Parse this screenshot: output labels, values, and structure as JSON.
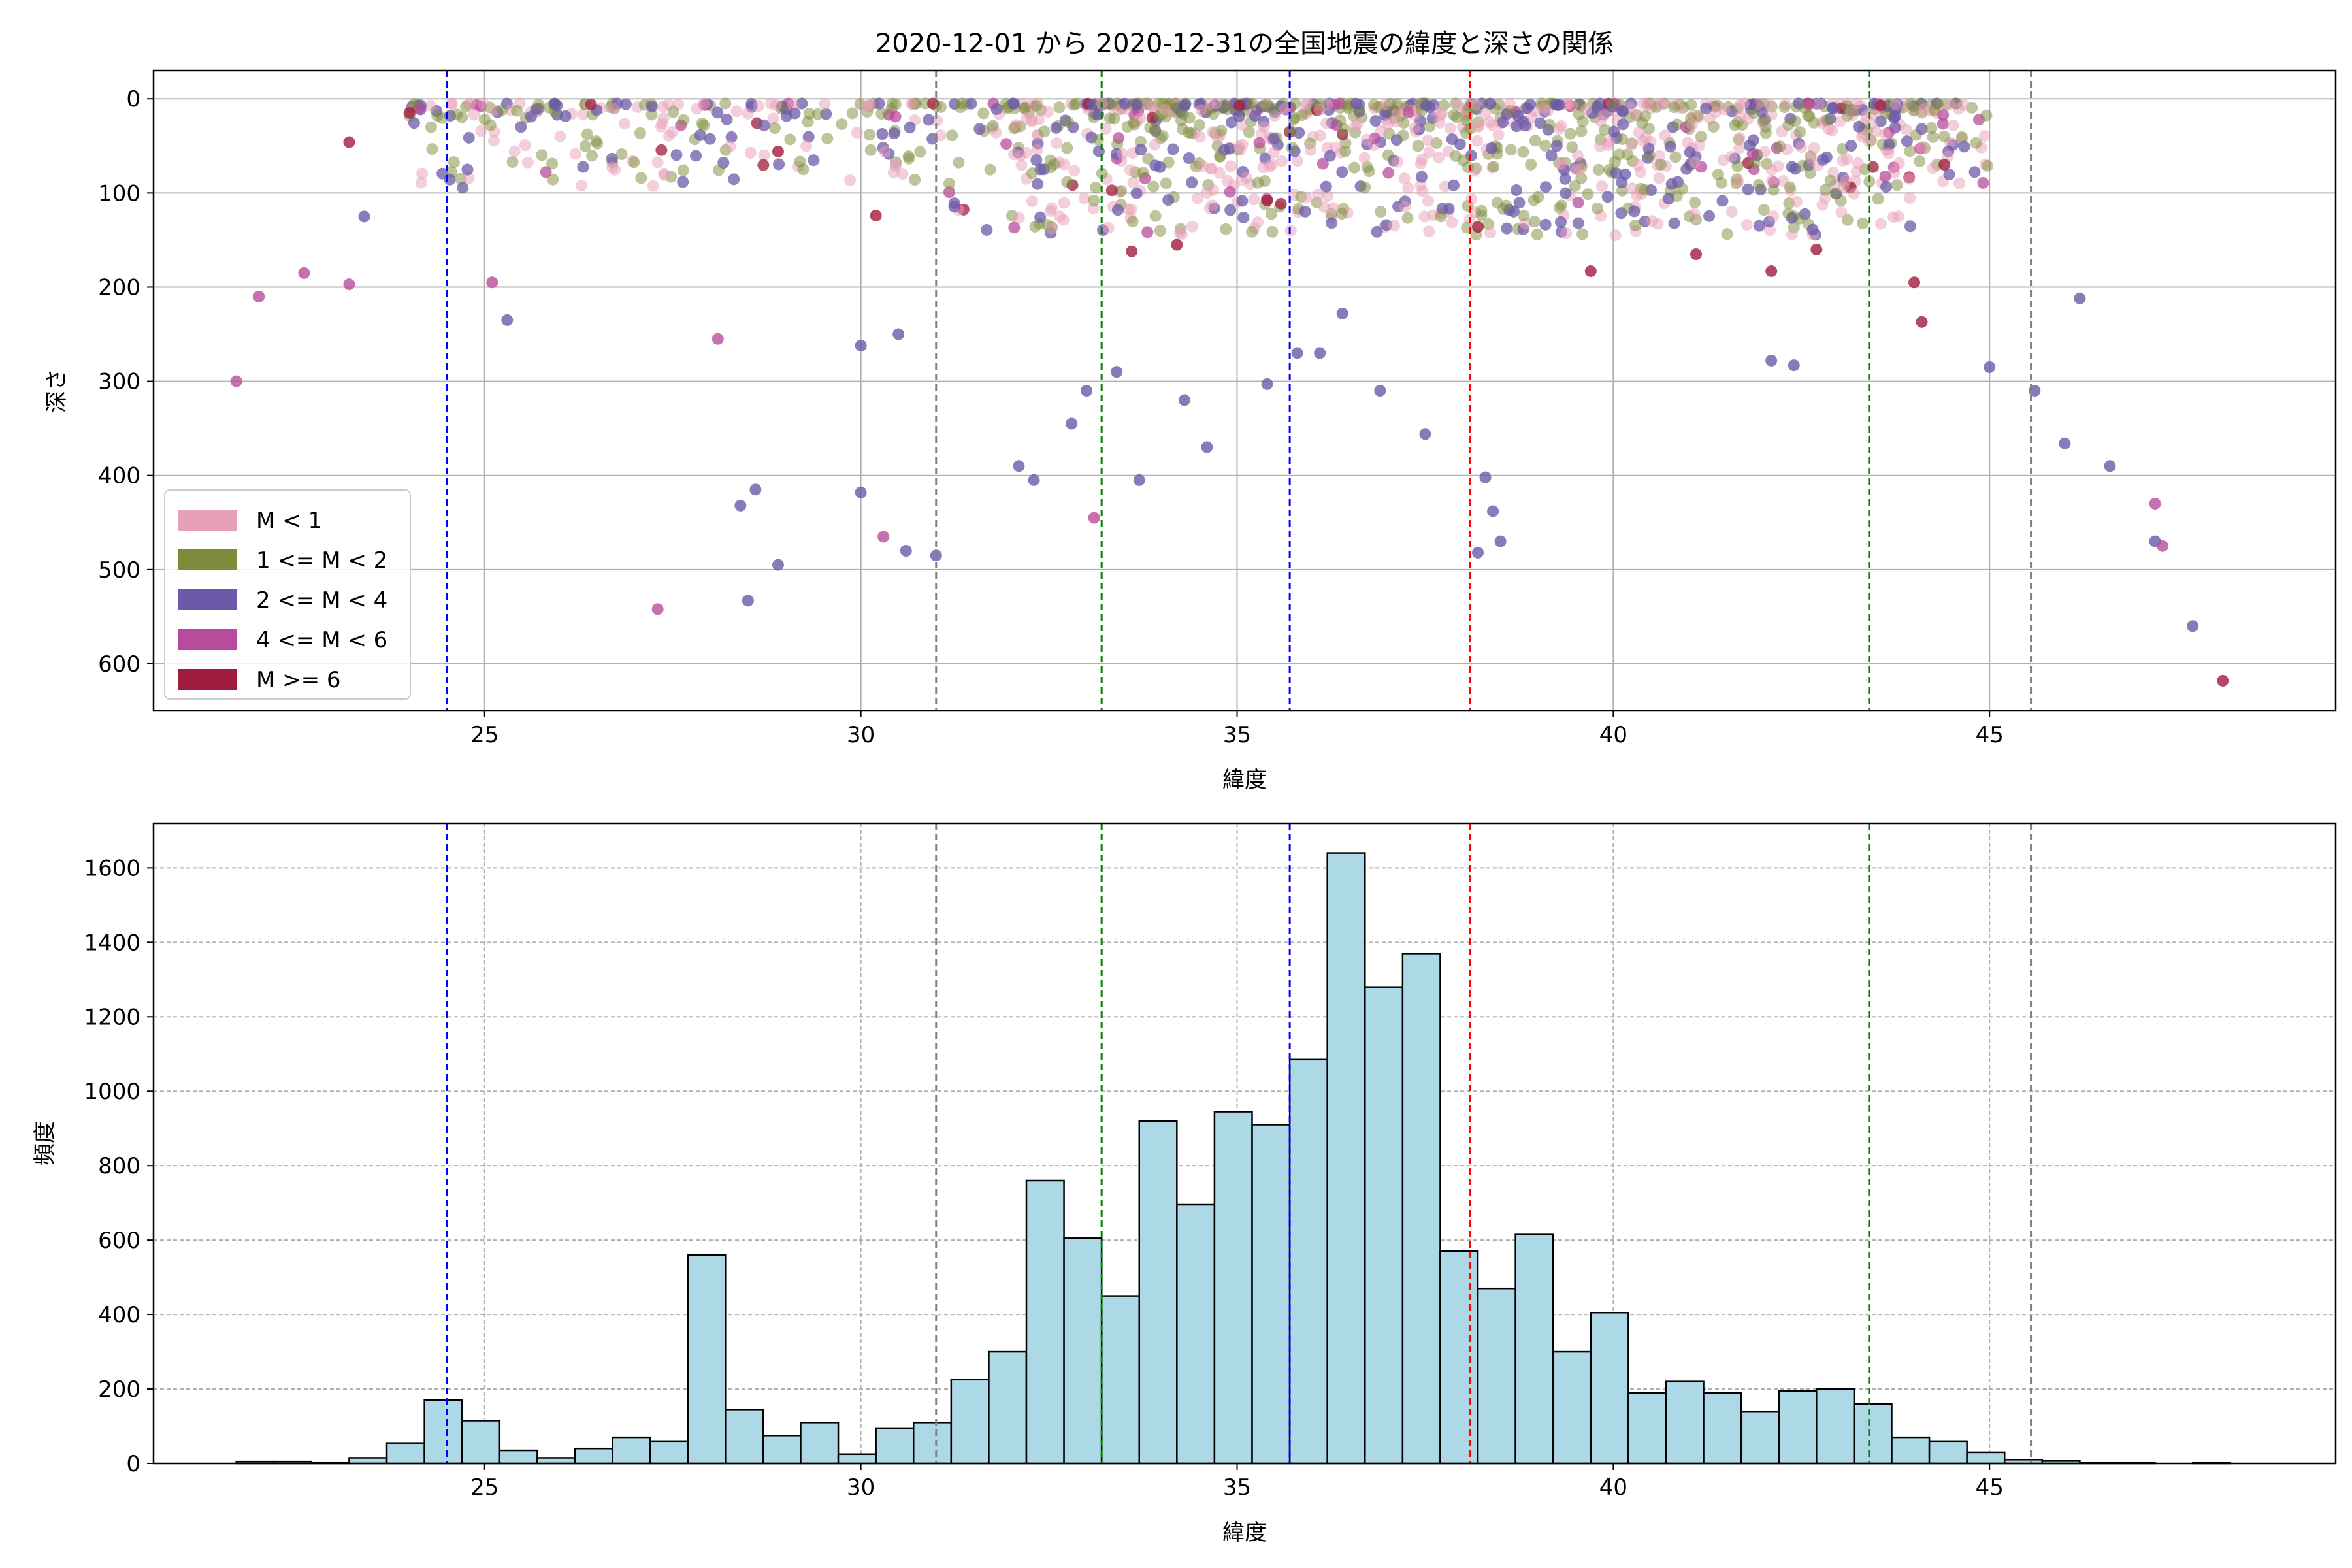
{
  "figure": {
    "title": "2020-12-01 から 2020-12-31の全国地震の緯度と深さの関係"
  },
  "chart_data": [
    {
      "type": "scatter",
      "xlabel": "緯度",
      "ylabel": "深さ",
      "xlim": [
        20.6,
        49.6
      ],
      "ylim": [
        650,
        -30
      ],
      "y_inverted": true,
      "xticks": [
        25,
        30,
        35,
        40,
        45
      ],
      "yticks": [
        0,
        100,
        200,
        300,
        400,
        500,
        600
      ],
      "grid": true,
      "legend_position": "lower-left",
      "series": [
        {
          "name": "M < 1",
          "color": "#e8a0b8"
        },
        {
          "name": "1 <= M < 2",
          "color": "#7d8c3c"
        },
        {
          "name": "2 <= M < 4",
          "color": "#6c5aa8"
        },
        {
          "name": "4 <= M < 6",
          "color": "#b84c9c"
        },
        {
          "name": "M >= 6",
          "color": "#a01c3c"
        }
      ],
      "sample_points": [
        {
          "x": 21.7,
          "y": 300,
          "series": 3
        },
        {
          "x": 22.0,
          "y": 210,
          "series": 3
        },
        {
          "x": 22.6,
          "y": 185,
          "series": 3
        },
        {
          "x": 23.2,
          "y": 197,
          "series": 3
        },
        {
          "x": 23.4,
          "y": 125,
          "series": 2
        },
        {
          "x": 25.3,
          "y": 235,
          "series": 2
        },
        {
          "x": 25.1,
          "y": 195,
          "series": 3
        },
        {
          "x": 27.3,
          "y": 542,
          "series": 3
        },
        {
          "x": 28.1,
          "y": 255,
          "series": 3
        },
        {
          "x": 28.5,
          "y": 533,
          "series": 2
        },
        {
          "x": 28.6,
          "y": 415,
          "series": 2
        },
        {
          "x": 28.4,
          "y": 432,
          "series": 2
        },
        {
          "x": 28.9,
          "y": 495,
          "series": 2
        },
        {
          "x": 30.0,
          "y": 418,
          "series": 2
        },
        {
          "x": 30.3,
          "y": 465,
          "series": 3
        },
        {
          "x": 30.6,
          "y": 480,
          "series": 2
        },
        {
          "x": 31.0,
          "y": 485,
          "series": 2
        },
        {
          "x": 30.5,
          "y": 250,
          "series": 2
        },
        {
          "x": 30.0,
          "y": 262,
          "series": 2
        },
        {
          "x": 30.2,
          "y": 124,
          "series": 4
        },
        {
          "x": 32.1,
          "y": 390,
          "series": 2
        },
        {
          "x": 32.3,
          "y": 405,
          "series": 2
        },
        {
          "x": 32.8,
          "y": 345,
          "series": 2
        },
        {
          "x": 33.1,
          "y": 445,
          "series": 3
        },
        {
          "x": 33.0,
          "y": 310,
          "series": 2
        },
        {
          "x": 33.4,
          "y": 290,
          "series": 2
        },
        {
          "x": 33.7,
          "y": 405,
          "series": 2
        },
        {
          "x": 34.3,
          "y": 320,
          "series": 2
        },
        {
          "x": 34.6,
          "y": 370,
          "series": 2
        },
        {
          "x": 35.4,
          "y": 303,
          "series": 2
        },
        {
          "x": 35.8,
          "y": 270,
          "series": 2
        },
        {
          "x": 36.1,
          "y": 270,
          "series": 2
        },
        {
          "x": 36.4,
          "y": 228,
          "series": 2
        },
        {
          "x": 36.9,
          "y": 310,
          "series": 2
        },
        {
          "x": 37.5,
          "y": 356,
          "series": 2
        },
        {
          "x": 38.2,
          "y": 482,
          "series": 2
        },
        {
          "x": 38.5,
          "y": 470,
          "series": 2
        },
        {
          "x": 38.4,
          "y": 438,
          "series": 2
        },
        {
          "x": 38.3,
          "y": 402,
          "series": 2
        },
        {
          "x": 42.1,
          "y": 278,
          "series": 2
        },
        {
          "x": 42.4,
          "y": 283,
          "series": 2
        },
        {
          "x": 45.0,
          "y": 285,
          "series": 2
        },
        {
          "x": 45.6,
          "y": 310,
          "series": 2
        },
        {
          "x": 46.0,
          "y": 366,
          "series": 2
        },
        {
          "x": 46.6,
          "y": 390,
          "series": 2
        },
        {
          "x": 47.2,
          "y": 430,
          "series": 3
        },
        {
          "x": 47.2,
          "y": 470,
          "series": 2
        },
        {
          "x": 47.3,
          "y": 475,
          "series": 3
        },
        {
          "x": 47.7,
          "y": 560,
          "series": 2
        },
        {
          "x": 48.1,
          "y": 618,
          "series": 4
        },
        {
          "x": 46.2,
          "y": 212,
          "series": 2
        },
        {
          "x": 35.4,
          "y": 108,
          "series": 4
        },
        {
          "x": 38.2,
          "y": 136,
          "series": 4
        },
        {
          "x": 39.7,
          "y": 183,
          "series": 4
        },
        {
          "x": 41.1,
          "y": 165,
          "series": 4
        },
        {
          "x": 42.1,
          "y": 183,
          "series": 4
        },
        {
          "x": 42.7,
          "y": 160,
          "series": 4
        },
        {
          "x": 44.1,
          "y": 237,
          "series": 4
        },
        {
          "x": 44.4,
          "y": 70,
          "series": 4
        },
        {
          "x": 44.0,
          "y": 195,
          "series": 4
        },
        {
          "x": 33.6,
          "y": 162,
          "series": 4
        },
        {
          "x": 34.2,
          "y": 155,
          "series": 4
        },
        {
          "x": 24.0,
          "y": 15,
          "series": 4
        },
        {
          "x": 28.9,
          "y": 56,
          "series": 4
        },
        {
          "x": 23.2,
          "y": 46,
          "series": 4
        }
      ],
      "reference_lines": [
        {
          "x": 24.5,
          "color": "#0000ff"
        },
        {
          "x": 31.0,
          "color": "#808080"
        },
        {
          "x": 33.2,
          "color": "#008000"
        },
        {
          "x": 35.7,
          "color": "#0000ff"
        },
        {
          "x": 38.1,
          "color": "#ff0000"
        },
        {
          "x": 43.4,
          "color": "#008000"
        },
        {
          "x": 45.55,
          "color": "#808080"
        }
      ]
    },
    {
      "type": "bar",
      "subtype": "histogram",
      "xlabel": "緯度",
      "ylabel": "頻度",
      "xlim": [
        20.6,
        49.6
      ],
      "ylim": [
        0,
        1720
      ],
      "xticks": [
        25,
        30,
        35,
        40,
        45
      ],
      "yticks": [
        0,
        200,
        400,
        600,
        800,
        1000,
        1200,
        1400,
        1600
      ],
      "grid": true,
      "bin_start": 21.7,
      "bin_width": 0.5,
      "bar_color": "#add8e6",
      "edge_color": "#000000",
      "values": [
        5,
        5,
        3,
        15,
        55,
        170,
        115,
        35,
        15,
        40,
        70,
        60,
        560,
        145,
        75,
        110,
        25,
        95,
        110,
        225,
        300,
        760,
        605,
        450,
        920,
        695,
        945,
        910,
        1085,
        1640,
        1280,
        1370,
        570,
        470,
        615,
        300,
        405,
        190,
        220,
        190,
        140,
        195,
        200,
        160,
        70,
        60,
        30,
        10,
        8,
        3,
        2,
        0,
        2
      ],
      "reference_lines": [
        {
          "x": 24.5,
          "color": "#0000ff"
        },
        {
          "x": 31.0,
          "color": "#808080"
        },
        {
          "x": 33.2,
          "color": "#008000"
        },
        {
          "x": 35.7,
          "color": "#0000ff"
        },
        {
          "x": 38.1,
          "color": "#ff0000"
        },
        {
          "x": 43.4,
          "color": "#008000"
        },
        {
          "x": 45.55,
          "color": "#808080"
        }
      ]
    }
  ]
}
